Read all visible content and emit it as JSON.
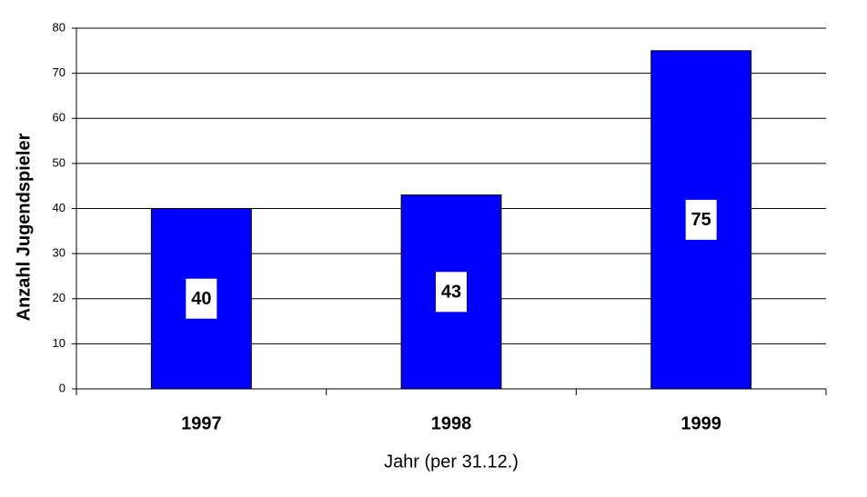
{
  "chart_data": {
    "type": "bar",
    "x_label": "Jahr (per 31.12.)",
    "y_label": "Anzahl Jugendspieler",
    "categories": [
      "1997",
      "1998",
      "1999"
    ],
    "values": [
      40,
      43,
      75
    ],
    "color": "#0000ff",
    "ylim": [
      0,
      80
    ],
    "yticks": [
      0,
      10,
      20,
      30,
      40,
      50,
      60,
      70,
      80
    ],
    "grid": true
  }
}
